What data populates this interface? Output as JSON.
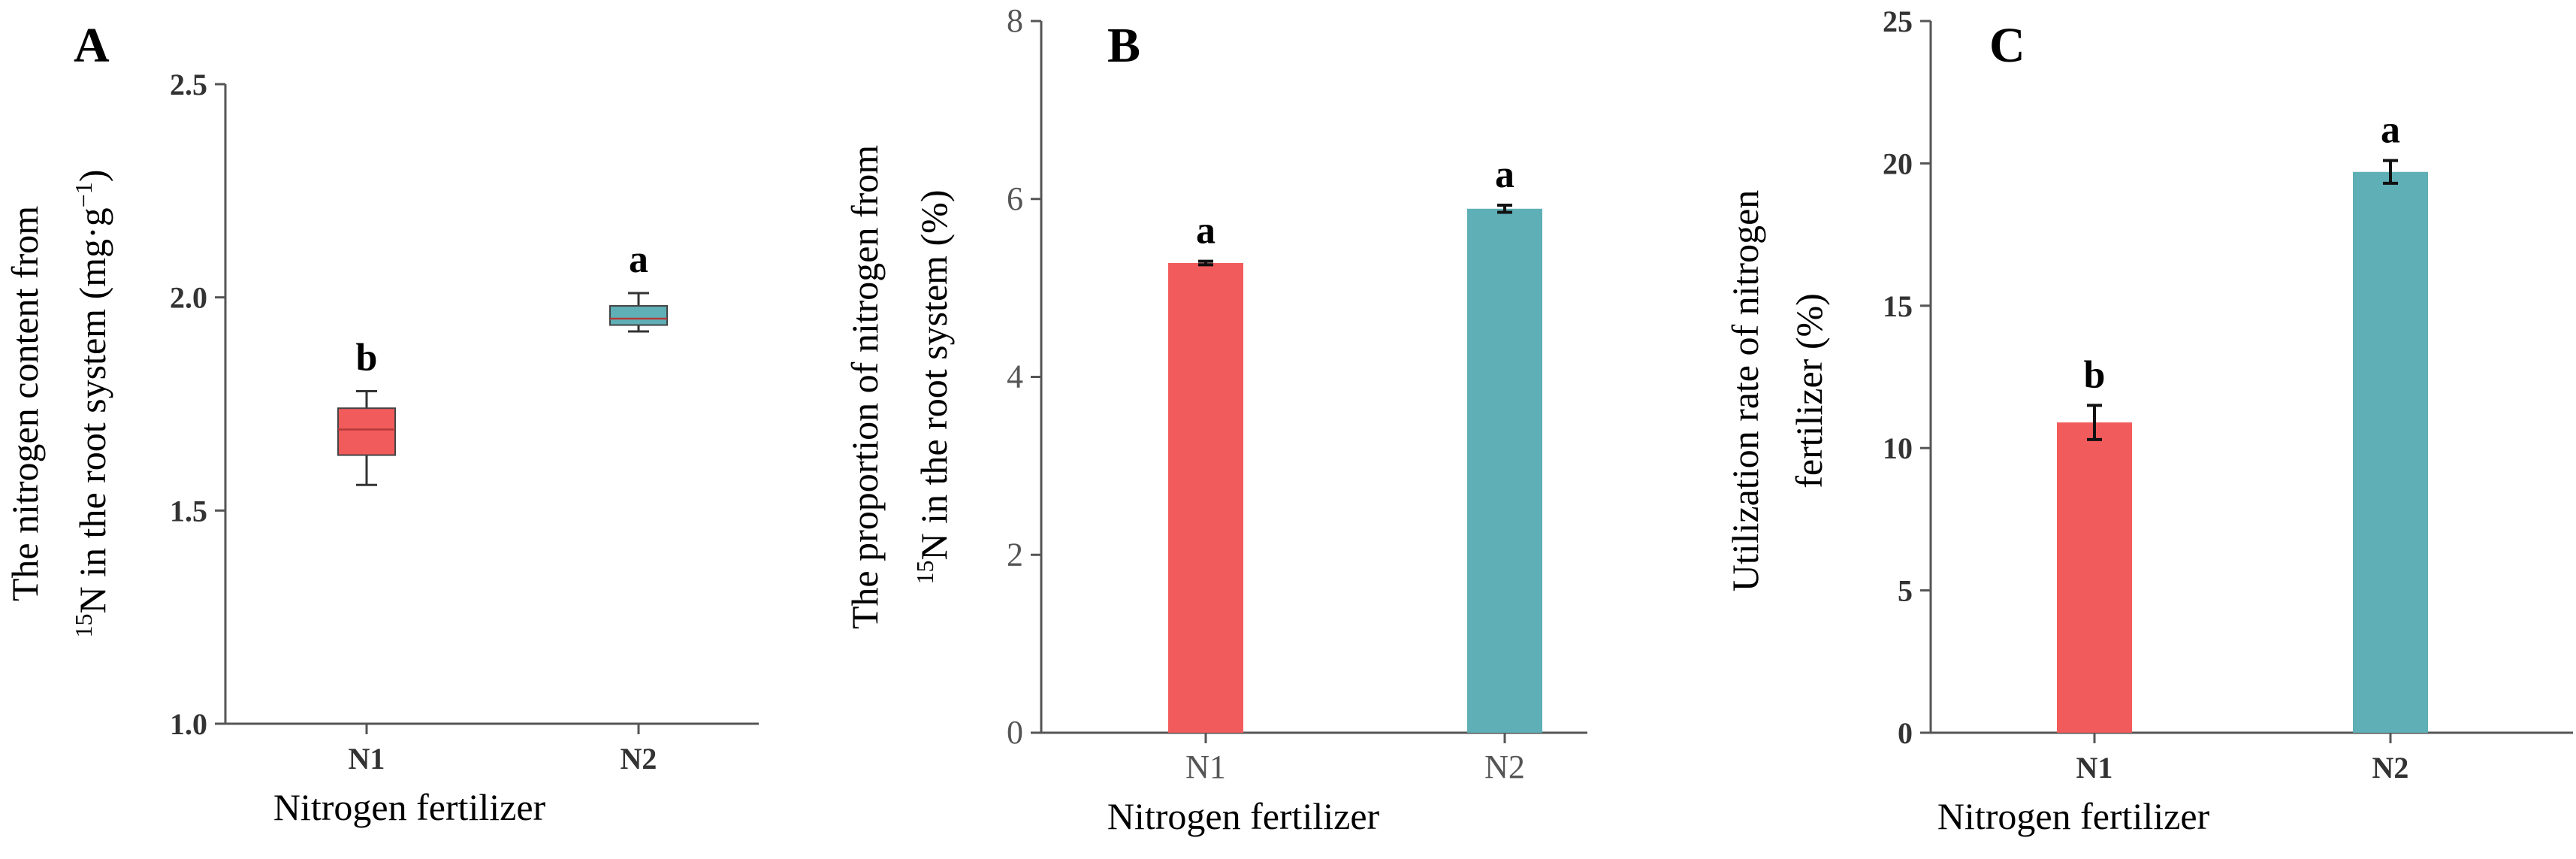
{
  "colors": {
    "n1": "#f25b5b",
    "n2": "#5eafb6",
    "axis": "#555555",
    "text": "#000000"
  },
  "chart_data": [
    {
      "type": "box",
      "panel": "A",
      "xlabel": "Nitrogen fertilizer",
      "ylabel_line1": "The nitrogen content from",
      "ylabel_line2_sup": "15",
      "ylabel_line2_text": "N in the root system (mg·g",
      "ylabel_line2_unit_sup": "−1",
      "ylabel_line2_end": ")",
      "ylim": [
        1.0,
        2.5
      ],
      "ticks": [
        1.0,
        1.5,
        2.0,
        2.5
      ],
      "tick_labels": [
        "1.0",
        "1.5",
        "2.0",
        "2.5"
      ],
      "categories": [
        "N1",
        "N2"
      ],
      "boxes": [
        {
          "category": "N1",
          "min": 1.56,
          "q1": 1.63,
          "median": 1.69,
          "q3": 1.74,
          "max": 1.78,
          "letter": "b"
        },
        {
          "category": "N2",
          "min": 1.92,
          "q1": 1.935,
          "median": 1.95,
          "q3": 1.98,
          "max": 2.01,
          "letter": "a"
        }
      ]
    },
    {
      "type": "bar",
      "panel": "B",
      "xlabel": "Nitrogen fertilizer",
      "ylabel_line1": "The proportion of nitrogen from",
      "ylabel_line2_sup": "15",
      "ylabel_line2_text": "N in the root system (%)",
      "ylim": [
        0,
        8
      ],
      "ticks": [
        0,
        2,
        4,
        6,
        8
      ],
      "tick_labels": [
        "0",
        "2",
        "4",
        "6",
        "8"
      ],
      "categories": [
        "N1",
        "N2"
      ],
      "values": [
        5.28,
        5.89
      ],
      "errors": [
        0.02,
        0.04
      ],
      "letters": [
        "a",
        "a"
      ]
    },
    {
      "type": "bar",
      "panel": "C",
      "xlabel": "Nitrogen fertilizer",
      "ylabel_line1": "Utilization rate of nitrogen",
      "ylabel_line2": "fertilizer (%)",
      "ylim": [
        0,
        25
      ],
      "ticks": [
        0,
        5,
        10,
        15,
        20,
        25
      ],
      "tick_labels": [
        "0",
        "5",
        "10",
        "15",
        "20",
        "25"
      ],
      "categories": [
        "N1",
        "N2"
      ],
      "values": [
        10.9,
        19.7
      ],
      "errors": [
        0.6,
        0.4
      ],
      "letters": [
        "b",
        "a"
      ]
    }
  ]
}
